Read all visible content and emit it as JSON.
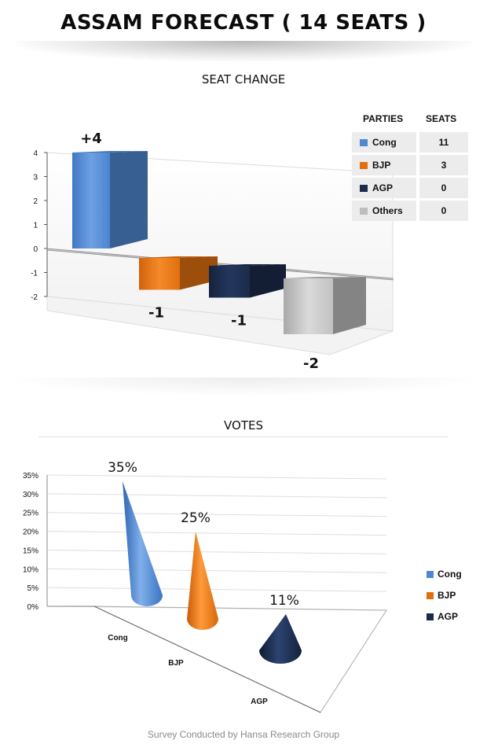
{
  "title": "ASSAM FORECAST ( 14 SEATS )",
  "seat_section": {
    "title": "SEAT CHANGE",
    "table": {
      "headers": [
        "PARTIES",
        "SEATS"
      ],
      "rows": [
        {
          "party": "Cong",
          "seats": "11",
          "color": "#4f87d1"
        },
        {
          "party": "BJP",
          "seats": "3",
          "color": "#e0700f"
        },
        {
          "party": "AGP",
          "seats": "0",
          "color": "#1b2b4a"
        },
        {
          "party": "Others",
          "seats": "0",
          "color": "#bdbdbd"
        }
      ]
    }
  },
  "votes_section": {
    "title": "VOTES",
    "legend": [
      {
        "label": "Cong",
        "color": "#4f87d1"
      },
      {
        "label": "BJP",
        "color": "#e0700f"
      },
      {
        "label": "AGP",
        "color": "#1b2b4a"
      }
    ]
  },
  "footer": "Survey Conducted by Hansa Research Group",
  "chart_data": [
    {
      "type": "bar",
      "title": "SEAT CHANGE",
      "categories": [
        "Cong",
        "BJP",
        "AGP",
        "Others"
      ],
      "values": [
        4,
        -1,
        -1,
        -2
      ],
      "data_labels": [
        "+4",
        "-1",
        "-1",
        "-2"
      ],
      "ylim": [
        -2,
        4
      ],
      "yticks": [
        "4",
        "3",
        "2",
        "1",
        "0",
        "-1",
        "-2"
      ],
      "colors": [
        "#4f87d1",
        "#e0700f",
        "#1b2b4a",
        "#bdbdbd"
      ],
      "style": "3d"
    },
    {
      "type": "bar",
      "title": "VOTES",
      "categories": [
        "Cong",
        "BJP",
        "AGP"
      ],
      "values": [
        35,
        25,
        11
      ],
      "data_labels": [
        "35%",
        "25%",
        "11%"
      ],
      "ylim": [
        0,
        35
      ],
      "yticks": [
        "35%",
        "30%",
        "25%",
        "20%",
        "15%",
        "10%",
        "5%",
        "0%"
      ],
      "colors": [
        "#4f87d1",
        "#e0700f",
        "#1b2b4a"
      ],
      "style": "3d-cone",
      "legend": "right"
    }
  ]
}
